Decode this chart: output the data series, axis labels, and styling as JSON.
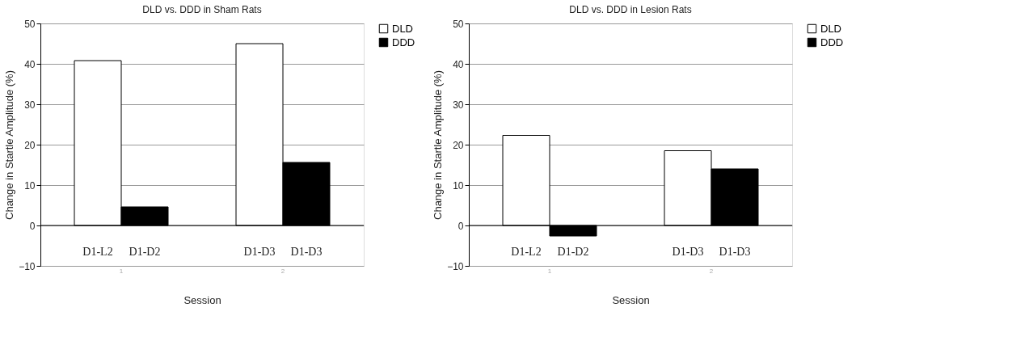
{
  "chart_data": [
    {
      "type": "bar",
      "title": "DLD vs. DDD in Sham Rats",
      "xlabel": "Session",
      "ylabel": "Change in Startle Amplitude (%)",
      "categories": [
        "1",
        "2"
      ],
      "series": [
        {
          "name": "DLD",
          "color": "#ffffff",
          "values": [
            40.8,
            45.0
          ]
        },
        {
          "name": "DDD",
          "color": "#000000",
          "values": [
            4.6,
            15.6
          ]
        }
      ],
      "annotations": [
        "D1-L2",
        "D1-D2",
        "D1-D3",
        "D1-D3"
      ],
      "ylim": [
        -10,
        50
      ],
      "yticks": [
        -10,
        0,
        10,
        20,
        30,
        40,
        50
      ],
      "grid": "y",
      "legend": "right"
    },
    {
      "type": "bar",
      "title": "DLD vs. DDD in Lesion Rats",
      "xlabel": "Session",
      "ylabel": "Change in Startle Amplitude (%)",
      "categories": [
        "1",
        "2"
      ],
      "series": [
        {
          "name": "DLD",
          "color": "#ffffff",
          "values": [
            22.3,
            18.5
          ]
        },
        {
          "name": "DDD",
          "color": "#000000",
          "values": [
            -2.6,
            14.0
          ]
        }
      ],
      "annotations": [
        "D1-L2",
        "D1-D2",
        "D1-D3",
        "D1-D3"
      ],
      "ylim": [
        -10,
        50
      ],
      "yticks": [
        -10,
        0,
        10,
        20,
        30,
        40,
        50
      ],
      "grid": "y",
      "legend": "right"
    }
  ]
}
